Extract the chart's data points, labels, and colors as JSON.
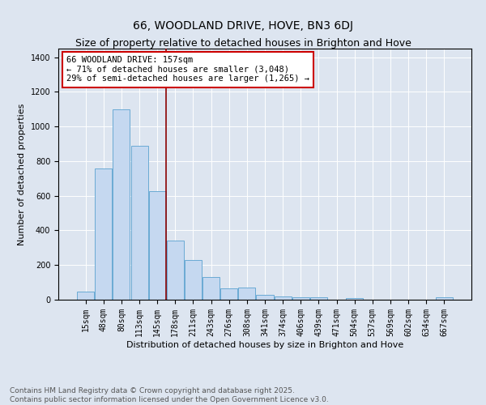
{
  "title": "66, WOODLAND DRIVE, HOVE, BN3 6DJ",
  "subtitle": "Size of property relative to detached houses in Brighton and Hove",
  "xlabel": "Distribution of detached houses by size in Brighton and Hove",
  "ylabel": "Number of detached properties",
  "categories": [
    "15sqm",
    "48sqm",
    "80sqm",
    "113sqm",
    "145sqm",
    "178sqm",
    "211sqm",
    "243sqm",
    "276sqm",
    "308sqm",
    "341sqm",
    "374sqm",
    "406sqm",
    "439sqm",
    "471sqm",
    "504sqm",
    "537sqm",
    "569sqm",
    "602sqm",
    "634sqm",
    "667sqm"
  ],
  "values": [
    48,
    760,
    1100,
    890,
    625,
    340,
    228,
    133,
    65,
    68,
    28,
    18,
    15,
    12,
    0,
    10,
    0,
    0,
    0,
    0,
    12
  ],
  "bar_color": "#c5d8f0",
  "bar_edge_color": "#6aaad4",
  "vline_x": 4.5,
  "vline_color": "#8b0000",
  "annotation_text": "66 WOODLAND DRIVE: 157sqm\n← 71% of detached houses are smaller (3,048)\n29% of semi-detached houses are larger (1,265) →",
  "annotation_box_color": "#ffffff",
  "annotation_box_edge_color": "#cc0000",
  "ylim": [
    0,
    1450
  ],
  "yticks": [
    0,
    200,
    400,
    600,
    800,
    1000,
    1200,
    1400
  ],
  "bg_color": "#dde5f0",
  "footer_line1": "Contains HM Land Registry data © Crown copyright and database right 2025.",
  "footer_line2": "Contains public sector information licensed under the Open Government Licence v3.0.",
  "title_fontsize": 10,
  "subtitle_fontsize": 9,
  "xlabel_fontsize": 8,
  "ylabel_fontsize": 8,
  "tick_fontsize": 7,
  "annotation_fontsize": 7.5,
  "footer_fontsize": 6.5
}
